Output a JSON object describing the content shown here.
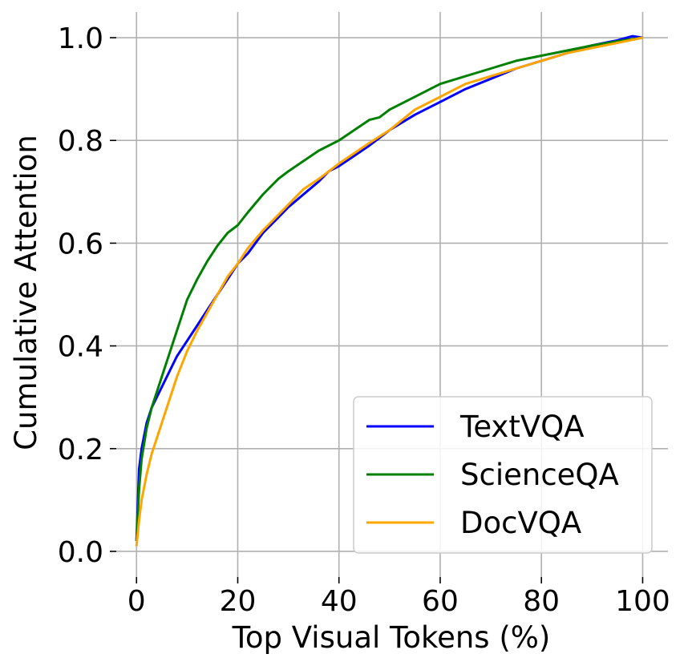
{
  "chart_data": {
    "type": "line",
    "title": "",
    "xlabel": "Top Visual Tokens (%)",
    "ylabel": "Cumulative Attention",
    "xlim": [
      -4,
      105
    ],
    "ylim": [
      -0.05,
      1.05
    ],
    "xticks": [
      0,
      20,
      40,
      60,
      80,
      100
    ],
    "yticks": [
      0.0,
      0.2,
      0.4,
      0.6,
      0.8,
      1.0
    ],
    "xtick_labels": [
      "0",
      "20",
      "40",
      "60",
      "80",
      "100"
    ],
    "ytick_labels": [
      "0.0",
      "0.2",
      "0.4",
      "0.6",
      "0.8",
      "1.0"
    ],
    "grid": true,
    "legend_position": "lower-right",
    "series": [
      {
        "name": "TextVQA",
        "color": "#0000ff",
        "x": [
          0,
          0.5,
          1,
          2,
          3,
          4,
          5,
          6,
          8,
          10,
          12,
          14,
          16,
          18,
          20,
          22,
          25,
          28,
          30,
          33,
          36,
          38,
          40,
          43,
          46,
          48,
          50,
          55,
          60,
          65,
          70,
          75,
          80,
          85,
          90,
          95,
          98,
          100
        ],
        "y": [
          0.02,
          0.16,
          0.2,
          0.25,
          0.28,
          0.3,
          0.32,
          0.34,
          0.38,
          0.41,
          0.44,
          0.47,
          0.5,
          0.53,
          0.56,
          0.58,
          0.62,
          0.65,
          0.67,
          0.695,
          0.72,
          0.74,
          0.75,
          0.77,
          0.79,
          0.805,
          0.82,
          0.85,
          0.875,
          0.9,
          0.92,
          0.94,
          0.955,
          0.97,
          0.985,
          0.995,
          1.003,
          1.0
        ]
      },
      {
        "name": "ScienceQA",
        "color": "#008000",
        "x": [
          0,
          0.5,
          1,
          2,
          3,
          4,
          5,
          6,
          8,
          10,
          12,
          14,
          16,
          18,
          20,
          22,
          25,
          28,
          30,
          33,
          36,
          40,
          43,
          46,
          48,
          50,
          55,
          60,
          65,
          70,
          75,
          80,
          85,
          90,
          95,
          100
        ],
        "y": [
          0.02,
          0.12,
          0.18,
          0.24,
          0.28,
          0.31,
          0.34,
          0.37,
          0.43,
          0.49,
          0.53,
          0.565,
          0.595,
          0.62,
          0.635,
          0.66,
          0.695,
          0.725,
          0.74,
          0.76,
          0.78,
          0.8,
          0.82,
          0.84,
          0.845,
          0.86,
          0.885,
          0.91,
          0.925,
          0.94,
          0.955,
          0.965,
          0.975,
          0.985,
          0.993,
          1.0
        ]
      },
      {
        "name": "DocVQA",
        "color": "#ffa500",
        "x": [
          0,
          0.5,
          1,
          2,
          3,
          4,
          5,
          6,
          8,
          10,
          12,
          14,
          16,
          18,
          20,
          22,
          25,
          28,
          30,
          33,
          36,
          40,
          43,
          46,
          50,
          55,
          60,
          65,
          70,
          75,
          80,
          85,
          90,
          95,
          100
        ],
        "y": [
          0.01,
          0.06,
          0.1,
          0.15,
          0.19,
          0.22,
          0.25,
          0.28,
          0.34,
          0.39,
          0.43,
          0.465,
          0.5,
          0.535,
          0.56,
          0.59,
          0.625,
          0.655,
          0.675,
          0.705,
          0.725,
          0.755,
          0.775,
          0.795,
          0.82,
          0.86,
          0.885,
          0.91,
          0.925,
          0.94,
          0.955,
          0.97,
          0.98,
          0.99,
          1.0
        ]
      }
    ]
  }
}
